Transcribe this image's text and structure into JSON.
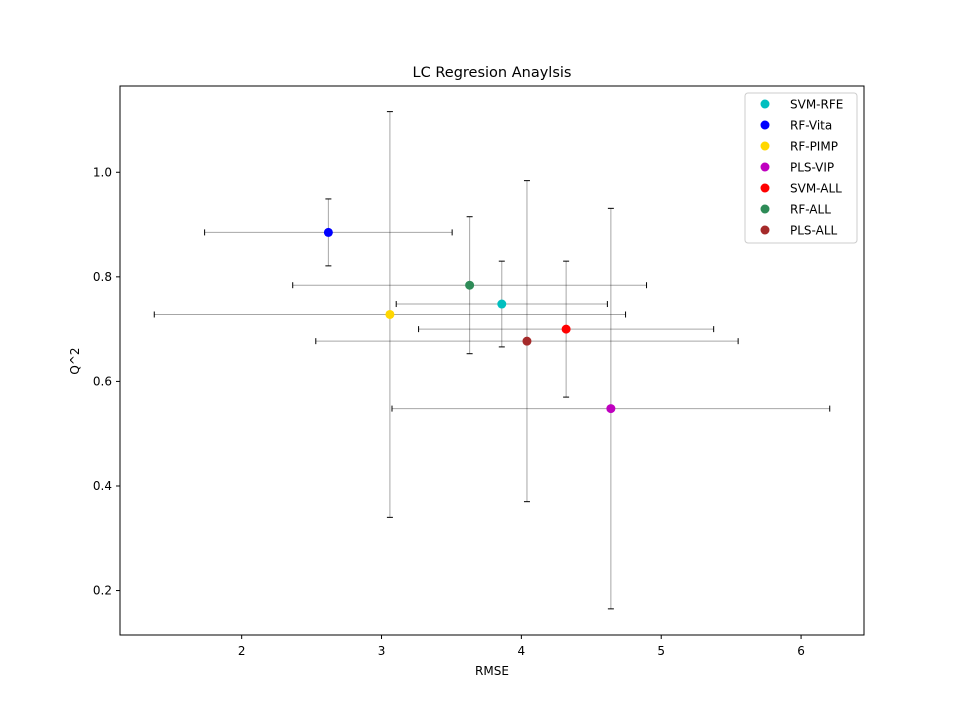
{
  "chart_data": {
    "type": "scatter",
    "title": "LC Regresion Anaylsis",
    "xlabel": "RMSE",
    "ylabel": "Q^2",
    "xlim": [
      1.13,
      6.45
    ],
    "ylim": [
      0.115,
      1.165
    ],
    "xticks": [
      2,
      3,
      4,
      5,
      6
    ],
    "yticks": [
      0.2,
      0.4,
      0.6,
      0.8,
      1.0
    ],
    "xtick_labels": [
      "2",
      "3",
      "4",
      "5",
      "6"
    ],
    "ytick_labels": [
      "0.2",
      "0.4",
      "0.6",
      "0.8",
      "1.0"
    ],
    "legend_position": "top-right",
    "grid": false,
    "series": [
      {
        "name": "SVM-RFE",
        "color": "#00bfbf",
        "x": 3.86,
        "y": 0.748,
        "xerr": 0.755,
        "yerr": 0.082
      },
      {
        "name": "RF-Vita",
        "color": "#0000ff",
        "x": 2.62,
        "y": 0.885,
        "xerr": 0.885,
        "yerr": 0.064
      },
      {
        "name": "RF-PIMP",
        "color": "#ffd700",
        "x": 3.06,
        "y": 0.728,
        "xerr": 1.685,
        "yerr": 0.388
      },
      {
        "name": "PLS-VIP",
        "color": "#bf00bf",
        "x": 4.64,
        "y": 0.548,
        "xerr": 1.565,
        "yerr": 0.383
      },
      {
        "name": "SVM-ALL",
        "color": "#ff0000",
        "x": 4.32,
        "y": 0.7,
        "xerr": 1.055,
        "yerr": 0.13
      },
      {
        "name": "RF-ALL",
        "color": "#2e8b57",
        "x": 3.63,
        "y": 0.784,
        "xerr": 1.265,
        "yerr": 0.131
      },
      {
        "name": "PLS-ALL",
        "color": "#a52a2a",
        "x": 4.04,
        "y": 0.677,
        "xerr": 1.51,
        "yerr": 0.307
      }
    ]
  }
}
